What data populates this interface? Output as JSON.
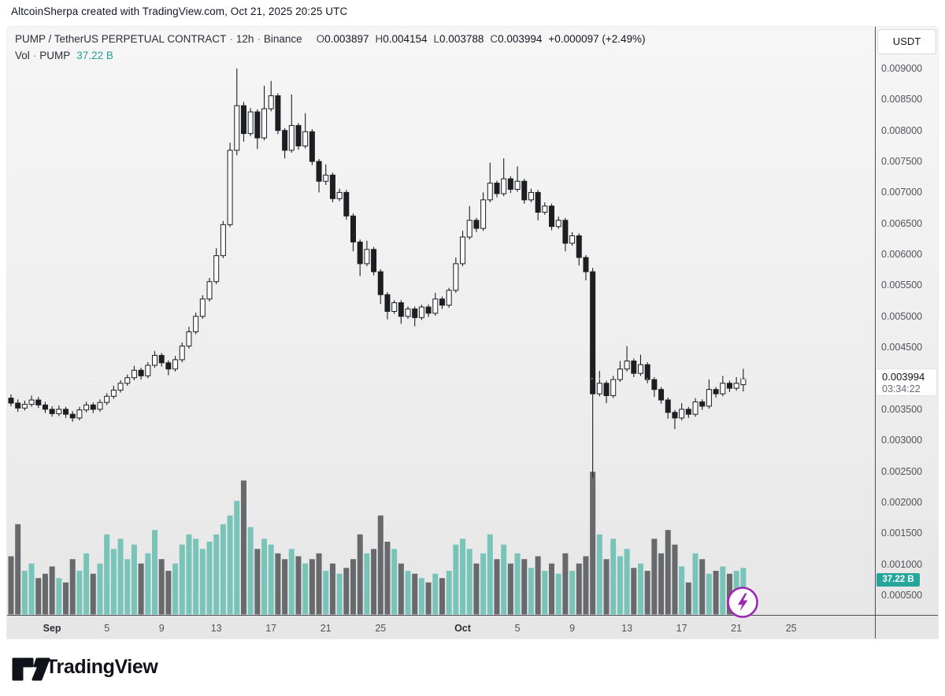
{
  "attribution": {
    "text": "AltcoinSherpa created with TradingView.com, Oct 21, 2025 20:25 UTC"
  },
  "panel": {
    "header": {
      "symbol": "PUMP / TetherUS PERPETUAL CONTRACT",
      "sep1": "·",
      "interval": "12h",
      "sep2": "·",
      "exchange": "Binance",
      "o_label": "O",
      "o": "0.003897",
      "h_label": "H",
      "h": "0.004154",
      "l_label": "L",
      "l": "0.003788",
      "c_label": "C",
      "c": "0.003994",
      "change": "+0.000097",
      "change_pct": "(+2.49%)",
      "vol_label": "Vol",
      "vol_sep": "·",
      "vol_symbol": "PUMP",
      "vol_value": "37.22 B"
    }
  },
  "price_axis": {
    "currency_button": "USDT",
    "ticks": [
      "0.009000",
      "0.008500",
      "0.008000",
      "0.007500",
      "0.007000",
      "0.006500",
      "0.006000",
      "0.005500",
      "0.005000",
      "0.004500",
      "0.003500",
      "0.003000",
      "0.002500",
      "0.002000",
      "0.001500",
      "0.001000",
      "0.000500"
    ],
    "last_price_label": "0.003994",
    "countdown": "03:34:22",
    "volume_badge": "37.22 B"
  },
  "time_axis": {
    "ticks": [
      {
        "label": "Sep",
        "index": 6,
        "month": true
      },
      {
        "label": "5",
        "index": 14
      },
      {
        "label": "9",
        "index": 22
      },
      {
        "label": "13",
        "index": 30
      },
      {
        "label": "17",
        "index": 38
      },
      {
        "label": "21",
        "index": 46
      },
      {
        "label": "25",
        "index": 54
      },
      {
        "label": "Oct",
        "index": 66,
        "month": true
      },
      {
        "label": "5",
        "index": 74
      },
      {
        "label": "9",
        "index": 82
      },
      {
        "label": "13",
        "index": 90
      },
      {
        "label": "17",
        "index": 98
      },
      {
        "label": "21",
        "index": 106
      },
      {
        "label": "25",
        "index": 114
      }
    ]
  },
  "footer": {
    "brand": "TradingView"
  },
  "icons": {
    "flash": "lightning-bolt",
    "flash_color": "#9c27b0"
  },
  "colors": {
    "candle_up_fill": "#fbfbfc",
    "candle_down_fill": "#1c1e22",
    "candle_stroke": "#1c1e22",
    "volume_up": "#79c4b9",
    "volume_down": "#68696d",
    "badge_teal": "#26a69a",
    "vol_text_teal": "#26a09a",
    "axis_line": "#4b4e56",
    "axis_text": "#50535a",
    "price_line": "#ffffff",
    "text_primary": "#131722"
  },
  "chart_data": {
    "type": "candlestick",
    "title": "PUMP / TetherUS PERPETUAL CONTRACT 12h Binance",
    "price_axis_range": [
      0.0005,
      0.009
    ],
    "price_tick_step": 0.0005,
    "interval_hours": 12,
    "visible_date_range": "Aug 29 2025 - Oct 21 2025",
    "last_price": 0.003994,
    "volume_display": "37.22 B",
    "grid": false,
    "legend_position": "top-left",
    "candles_format": [
      "open",
      "high",
      "low",
      "close",
      "relative_volume"
    ],
    "candles": [
      [
        0.00368,
        0.00374,
        0.00355,
        0.0036,
        0.4
      ],
      [
        0.0036,
        0.00366,
        0.00346,
        0.00352,
        0.62
      ],
      [
        0.00352,
        0.00364,
        0.00348,
        0.00358,
        0.3
      ],
      [
        0.00358,
        0.00372,
        0.00354,
        0.00365,
        0.35
      ],
      [
        0.00365,
        0.0037,
        0.00352,
        0.00357,
        0.25
      ],
      [
        0.00357,
        0.00362,
        0.00344,
        0.0035,
        0.28
      ],
      [
        0.0035,
        0.00355,
        0.00338,
        0.00343,
        0.33
      ],
      [
        0.00343,
        0.00356,
        0.00339,
        0.0035,
        0.25
      ],
      [
        0.0035,
        0.00354,
        0.00336,
        0.00342,
        0.22
      ],
      [
        0.00342,
        0.00347,
        0.0033,
        0.00336,
        0.38
      ],
      [
        0.00336,
        0.00354,
        0.00332,
        0.00349,
        0.3
      ],
      [
        0.00349,
        0.00362,
        0.00345,
        0.00357,
        0.42
      ],
      [
        0.00357,
        0.00361,
        0.00344,
        0.0035,
        0.28
      ],
      [
        0.0035,
        0.00366,
        0.00346,
        0.00361,
        0.35
      ],
      [
        0.00361,
        0.00376,
        0.00357,
        0.00371,
        0.55
      ],
      [
        0.00371,
        0.00388,
        0.00367,
        0.00381,
        0.45
      ],
      [
        0.00381,
        0.00397,
        0.00377,
        0.00392,
        0.52
      ],
      [
        0.00392,
        0.00406,
        0.00388,
        0.00401,
        0.38
      ],
      [
        0.00401,
        0.0042,
        0.00397,
        0.00413,
        0.48
      ],
      [
        0.00413,
        0.00417,
        0.00398,
        0.00404,
        0.35
      ],
      [
        0.00404,
        0.00426,
        0.004,
        0.00421,
        0.42
      ],
      [
        0.00421,
        0.00444,
        0.00417,
        0.00437,
        0.58
      ],
      [
        0.00437,
        0.00441,
        0.00419,
        0.00425,
        0.38
      ],
      [
        0.00425,
        0.00429,
        0.00405,
        0.00415,
        0.3
      ],
      [
        0.00415,
        0.00436,
        0.00411,
        0.0043,
        0.35
      ],
      [
        0.0043,
        0.00458,
        0.00426,
        0.00452,
        0.48
      ],
      [
        0.00452,
        0.00483,
        0.00448,
        0.00475,
        0.55
      ],
      [
        0.00475,
        0.00506,
        0.00471,
        0.005,
        0.52
      ],
      [
        0.005,
        0.00534,
        0.00496,
        0.00528,
        0.45
      ],
      [
        0.00528,
        0.00562,
        0.00524,
        0.00556,
        0.5
      ],
      [
        0.00556,
        0.0061,
        0.00552,
        0.00598,
        0.55
      ],
      [
        0.00598,
        0.00654,
        0.00594,
        0.00648,
        0.62
      ],
      [
        0.00648,
        0.0078,
        0.00644,
        0.00768,
        0.68
      ],
      [
        0.00768,
        0.009,
        0.0076,
        0.0084,
        0.78
      ],
      [
        0.0084,
        0.00846,
        0.00782,
        0.00795,
        0.92
      ],
      [
        0.00795,
        0.00836,
        0.00791,
        0.0083,
        0.6
      ],
      [
        0.0083,
        0.00834,
        0.0077,
        0.00788,
        0.45
      ],
      [
        0.00788,
        0.00872,
        0.00784,
        0.00835,
        0.52
      ],
      [
        0.00835,
        0.0088,
        0.00831,
        0.00856,
        0.48
      ],
      [
        0.00856,
        0.0086,
        0.00794,
        0.008,
        0.42
      ],
      [
        0.008,
        0.00804,
        0.00755,
        0.00768,
        0.38
      ],
      [
        0.00768,
        0.00858,
        0.00764,
        0.00808,
        0.45
      ],
      [
        0.00808,
        0.00812,
        0.00769,
        0.00775,
        0.4
      ],
      [
        0.00775,
        0.00828,
        0.00771,
        0.00798,
        0.35
      ],
      [
        0.00798,
        0.00802,
        0.00744,
        0.0075,
        0.38
      ],
      [
        0.0075,
        0.00754,
        0.007,
        0.00718,
        0.42
      ],
      [
        0.00718,
        0.00745,
        0.00712,
        0.00728,
        0.3
      ],
      [
        0.00728,
        0.00732,
        0.00684,
        0.0069,
        0.35
      ],
      [
        0.0069,
        0.00706,
        0.00686,
        0.007,
        0.28
      ],
      [
        0.007,
        0.00704,
        0.00656,
        0.00662,
        0.32
      ],
      [
        0.00662,
        0.00666,
        0.00605,
        0.0062,
        0.38
      ],
      [
        0.0062,
        0.00624,
        0.00565,
        0.00585,
        0.55
      ],
      [
        0.00585,
        0.00622,
        0.00581,
        0.00608,
        0.42
      ],
      [
        0.00608,
        0.00612,
        0.00566,
        0.00572,
        0.45
      ],
      [
        0.00572,
        0.00576,
        0.0052,
        0.00535,
        0.68
      ],
      [
        0.00535,
        0.00539,
        0.00495,
        0.00508,
        0.5
      ],
      [
        0.00508,
        0.00526,
        0.00504,
        0.00522,
        0.45
      ],
      [
        0.00522,
        0.00526,
        0.00488,
        0.005,
        0.35
      ],
      [
        0.005,
        0.00516,
        0.00496,
        0.00512,
        0.3
      ],
      [
        0.00512,
        0.00516,
        0.00484,
        0.00498,
        0.28
      ],
      [
        0.00498,
        0.00519,
        0.00494,
        0.00515,
        0.25
      ],
      [
        0.00515,
        0.00519,
        0.00499,
        0.00505,
        0.22
      ],
      [
        0.00505,
        0.00538,
        0.00501,
        0.00528,
        0.28
      ],
      [
        0.00528,
        0.00532,
        0.00512,
        0.00518,
        0.25
      ],
      [
        0.00518,
        0.00546,
        0.00514,
        0.00542,
        0.3
      ],
      [
        0.00542,
        0.00595,
        0.00538,
        0.00585,
        0.48
      ],
      [
        0.00585,
        0.00638,
        0.00581,
        0.00628,
        0.52
      ],
      [
        0.00628,
        0.00678,
        0.00624,
        0.00655,
        0.45
      ],
      [
        0.00655,
        0.00659,
        0.00636,
        0.00642,
        0.35
      ],
      [
        0.00642,
        0.007,
        0.00638,
        0.00688,
        0.42
      ],
      [
        0.00688,
        0.00748,
        0.00684,
        0.00715,
        0.55
      ],
      [
        0.00715,
        0.00719,
        0.00692,
        0.00698,
        0.38
      ],
      [
        0.00698,
        0.00755,
        0.00694,
        0.00722,
        0.48
      ],
      [
        0.00722,
        0.00726,
        0.00699,
        0.00705,
        0.35
      ],
      [
        0.00705,
        0.00742,
        0.00701,
        0.00718,
        0.42
      ],
      [
        0.00718,
        0.00722,
        0.00682,
        0.00688,
        0.38
      ],
      [
        0.00688,
        0.00706,
        0.00684,
        0.007,
        0.32
      ],
      [
        0.007,
        0.00704,
        0.00655,
        0.00668,
        0.4
      ],
      [
        0.00668,
        0.00684,
        0.00664,
        0.00678,
        0.3
      ],
      [
        0.00678,
        0.00682,
        0.00639,
        0.00645,
        0.35
      ],
      [
        0.00645,
        0.00661,
        0.00641,
        0.00655,
        0.28
      ],
      [
        0.00655,
        0.00659,
        0.00605,
        0.00618,
        0.42
      ],
      [
        0.00618,
        0.00636,
        0.00614,
        0.0063,
        0.3
      ],
      [
        0.0063,
        0.00634,
        0.00582,
        0.00595,
        0.35
      ],
      [
        0.00595,
        0.00599,
        0.00558,
        0.00572,
        0.4
      ],
      [
        0.00572,
        0.00578,
        0.0024,
        0.00375,
        0.98
      ],
      [
        0.00375,
        0.00412,
        0.00371,
        0.00392,
        0.55
      ],
      [
        0.00392,
        0.00396,
        0.0036,
        0.00372,
        0.38
      ],
      [
        0.00372,
        0.00404,
        0.00368,
        0.00398,
        0.52
      ],
      [
        0.00398,
        0.00428,
        0.00394,
        0.00415,
        0.4
      ],
      [
        0.00415,
        0.00452,
        0.00411,
        0.00428,
        0.45
      ],
      [
        0.00428,
        0.00432,
        0.00402,
        0.00408,
        0.32
      ],
      [
        0.00408,
        0.00438,
        0.00404,
        0.00422,
        0.35
      ],
      [
        0.00422,
        0.00426,
        0.00392,
        0.00398,
        0.3
      ],
      [
        0.00398,
        0.00402,
        0.0037,
        0.00382,
        0.52
      ],
      [
        0.00382,
        0.00386,
        0.00359,
        0.00365,
        0.42
      ],
      [
        0.00365,
        0.00369,
        0.00335,
        0.00345,
        0.58
      ],
      [
        0.00345,
        0.00349,
        0.00318,
        0.00336,
        0.48
      ],
      [
        0.00336,
        0.0036,
        0.00332,
        0.0035,
        0.33
      ],
      [
        0.0035,
        0.00354,
        0.00336,
        0.00342,
        0.22
      ],
      [
        0.00342,
        0.00368,
        0.00338,
        0.00362,
        0.42
      ],
      [
        0.00362,
        0.00366,
        0.00349,
        0.00355,
        0.38
      ],
      [
        0.00355,
        0.00398,
        0.00351,
        0.00382,
        0.28
      ],
      [
        0.00382,
        0.00386,
        0.00369,
        0.00375,
        0.3
      ],
      [
        0.00375,
        0.00404,
        0.00371,
        0.00392,
        0.33
      ],
      [
        0.00392,
        0.00396,
        0.00378,
        0.00384,
        0.28
      ],
      [
        0.00384,
        0.00402,
        0.0038,
        0.00392,
        0.3
      ],
      [
        0.003897,
        0.004154,
        0.003788,
        0.003994,
        0.32
      ]
    ]
  }
}
